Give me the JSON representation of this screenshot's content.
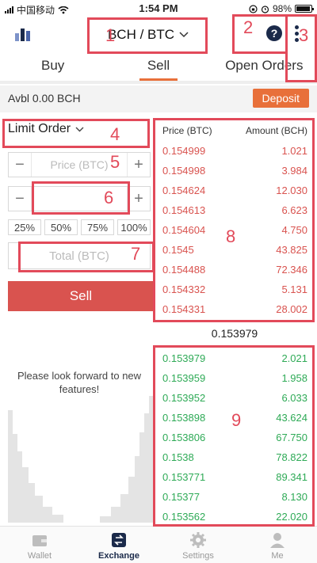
{
  "status_bar": {
    "carrier": "中国移动",
    "time": "1:54 PM",
    "battery": "98%"
  },
  "header": {
    "pair": "BCH / BTC",
    "help_symbol": "?"
  },
  "tabs": [
    {
      "label": "Buy"
    },
    {
      "label": "Sell"
    },
    {
      "label": "Open Orders"
    }
  ],
  "account": {
    "avbl": "Avbl 0.00 BCH",
    "deposit_label": "Deposit"
  },
  "order_form": {
    "order_type": "Limit Order",
    "price_placeholder": "Price (BTC)",
    "minus": "−",
    "plus": "+",
    "percent_options": [
      "25%",
      "50%",
      "75%",
      "100%"
    ],
    "total_placeholder": "Total (BTC)",
    "sell_label": "Sell"
  },
  "notice": "Please look forward to new features!",
  "order_book": {
    "price_header": "Price (BTC)",
    "amount_header": "Amount (BCH)",
    "asks": [
      {
        "price": "0.154999",
        "amount": "1.021"
      },
      {
        "price": "0.154998",
        "amount": "3.984"
      },
      {
        "price": "0.154624",
        "amount": "12.030"
      },
      {
        "price": "0.154613",
        "amount": "6.623"
      },
      {
        "price": "0.154604",
        "amount": "4.750"
      },
      {
        "price": "0.1545",
        "amount": "43.825"
      },
      {
        "price": "0.154488",
        "amount": "72.346"
      },
      {
        "price": "0.154332",
        "amount": "5.131"
      },
      {
        "price": "0.154331",
        "amount": "28.002"
      }
    ],
    "mid_price": "0.153979",
    "bids": [
      {
        "price": "0.153979",
        "amount": "2.021"
      },
      {
        "price": "0.153959",
        "amount": "1.958"
      },
      {
        "price": "0.153952",
        "amount": "6.033"
      },
      {
        "price": "0.153898",
        "amount": "43.624"
      },
      {
        "price": "0.153806",
        "amount": "67.750"
      },
      {
        "price": "0.1538",
        "amount": "78.822"
      },
      {
        "price": "0.153771",
        "amount": "89.341"
      },
      {
        "price": "0.15377",
        "amount": "8.130"
      },
      {
        "price": "0.153562",
        "amount": "22.020"
      }
    ]
  },
  "bottom_nav": [
    {
      "label": "Wallet",
      "icon": "wallet-icon"
    },
    {
      "label": "Exchange",
      "icon": "exchange-icon"
    },
    {
      "label": "Settings",
      "icon": "gear-icon"
    },
    {
      "label": "Me",
      "icon": "person-icon"
    }
  ],
  "annotations": [
    "1",
    "2",
    "3",
    "4",
    "5",
    "6",
    "7",
    "8",
    "9"
  ],
  "colors": {
    "accent": "#e8703a",
    "sell": "#d9534f",
    "buy": "#2eaa56",
    "annotation": "#e24a5a",
    "navy": "#1b2a4a"
  }
}
